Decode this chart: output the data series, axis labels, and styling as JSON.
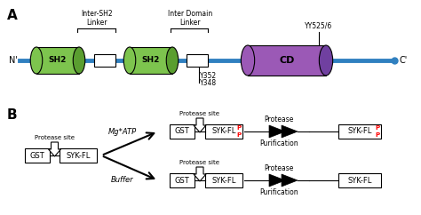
{
  "background_color": "#ffffff",
  "panel_A_label": "A",
  "panel_B_label": "B",
  "sh2_color": "#7dc44e",
  "sh2_dark_color": "#5a9e30",
  "cd_color": "#9b59b6",
  "cd_dark_color": "#7040a0",
  "cd_light_color": "#b07ad0",
  "linker_color": "#3080c0",
  "n_prime_label": "N'",
  "c_prime_label": "C'",
  "sh2_label": "SH2",
  "cd_label": "CD",
  "inter_sh2_linker": "Inter-SH2\nLinker",
  "inter_domain_linker": "Inter Domain\nLinker",
  "yy525": "YY525/6",
  "y352": "Y352",
  "y348": "Y348",
  "gst_label": "GST",
  "syk_fl_label": "SYK-FL",
  "protease_site": "Protease site",
  "mg_atp": "Mg*ATP",
  "buffer": "Buffer",
  "protease": "Protease",
  "purification": "Purification",
  "p_color": "#ff0000",
  "text_color": "#000000"
}
